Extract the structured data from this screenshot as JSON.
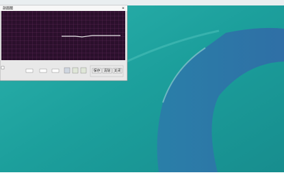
{
  "window": {
    "title": "剖面图",
    "buttons": [
      "保存",
      "清除",
      "关闭"
    ]
  }
}
